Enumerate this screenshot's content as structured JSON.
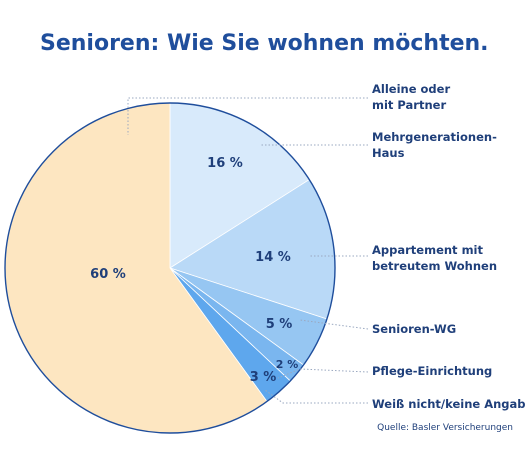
{
  "chart_data": {
    "type": "pie",
    "title": "Senioren: Wie Sie wohnen möchten.",
    "source": "Quelle: Basler Versicherungen",
    "slices": [
      {
        "label_lines": [
          "Alleine oder",
          "mit Partner"
        ],
        "value": 60,
        "value_label": "60 %",
        "color": "#fde6c1"
      },
      {
        "label_lines": [
          "Mehrgenerationen-",
          "Haus"
        ],
        "value": 16,
        "value_label": "16 %",
        "color": "#d8eafb"
      },
      {
        "label_lines": [
          "Appartement mit",
          "betreutem Wohnen"
        ],
        "value": 14,
        "value_label": "14 %",
        "color": "#b9d9f7"
      },
      {
        "label_lines": [
          "Senioren-WG"
        ],
        "value": 5,
        "value_label": "5 %",
        "color": "#96c6f2"
      },
      {
        "label_lines": [
          "Pflege-Einrichtung"
        ],
        "value": 2,
        "value_label": "2 %",
        "color": "#7ab6ef"
      },
      {
        "label_lines": [
          "Weiß nicht/keine Angabe"
        ],
        "value": 3,
        "value_label": "3 %",
        "color": "#5ea7ed"
      }
    ],
    "outline_color": "#1f4e9c"
  }
}
